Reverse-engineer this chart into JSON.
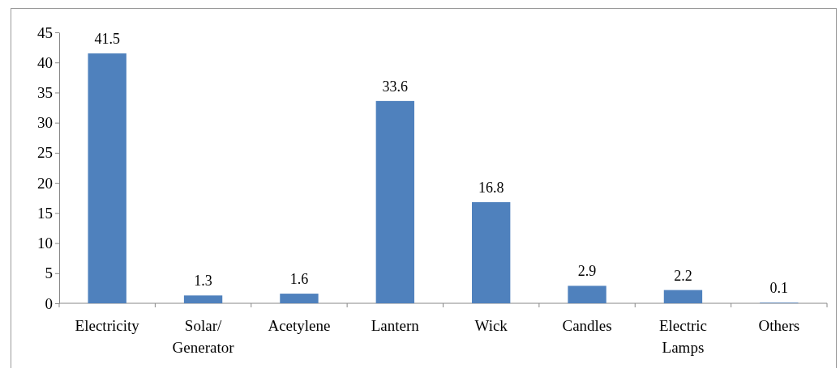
{
  "chart_data": {
    "type": "bar",
    "categories": [
      "Electricity",
      "Solar/Generator",
      "Acetylene",
      "Lantern",
      "Wick",
      "Candles",
      "Electric Lamps",
      "Others"
    ],
    "values": [
      41.5,
      1.3,
      1.6,
      33.6,
      16.8,
      2.9,
      2.2,
      0.1
    ],
    "color": "#4f81bd",
    "ylim": [
      0,
      45
    ],
    "yticks": [
      0,
      5,
      10,
      15,
      20,
      25,
      30,
      35,
      40,
      45
    ],
    "grid": false,
    "data_labels": true
  }
}
